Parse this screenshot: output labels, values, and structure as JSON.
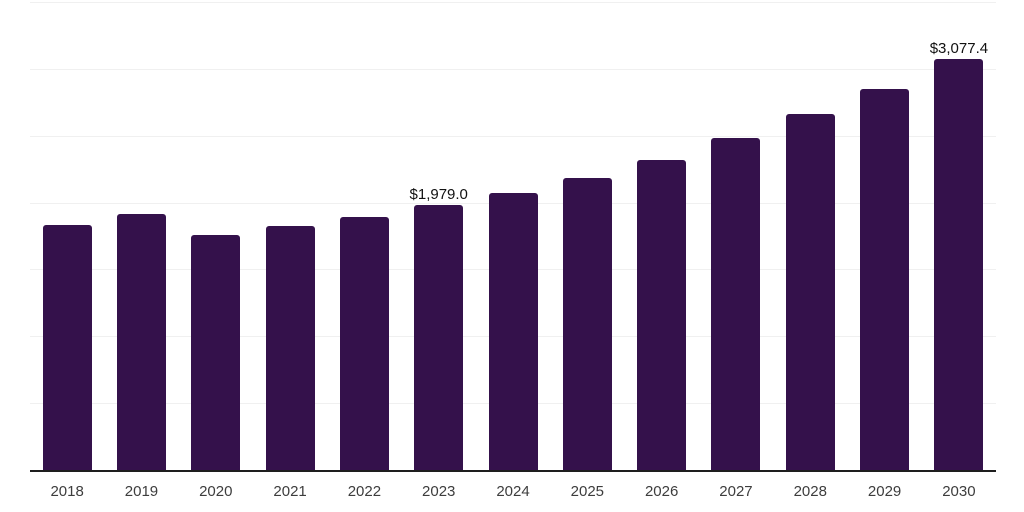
{
  "chart_data": {
    "type": "bar",
    "title": "",
    "categories": [
      "2018",
      "2019",
      "2020",
      "2021",
      "2022",
      "2023",
      "2024",
      "2025",
      "2026",
      "2027",
      "2028",
      "2029",
      "2030"
    ],
    "values": [
      1830,
      1915,
      1757,
      1825,
      1895,
      1979.0,
      2075,
      2185,
      2320,
      2480,
      2665,
      2850,
      3077.4
    ],
    "value_labels": [
      "",
      "",
      "",
      "",
      "",
      "$1,979.0",
      "",
      "",
      "",
      "",
      "",
      "",
      "$3,077.4"
    ],
    "xlabel": "",
    "ylabel": "",
    "ylim": [
      0,
      3500
    ],
    "gridline_step": 500,
    "grid": "horizontal-only",
    "legend_position": "none",
    "y_tick_labels_visible": false,
    "colors": {
      "bar": "#34114B",
      "axis_line": "#1e1e1e",
      "gridline": "#f0f0f0",
      "x_tick_label": "#3d3d3d",
      "value_label": "#111111",
      "background": "#ffffff"
    }
  }
}
